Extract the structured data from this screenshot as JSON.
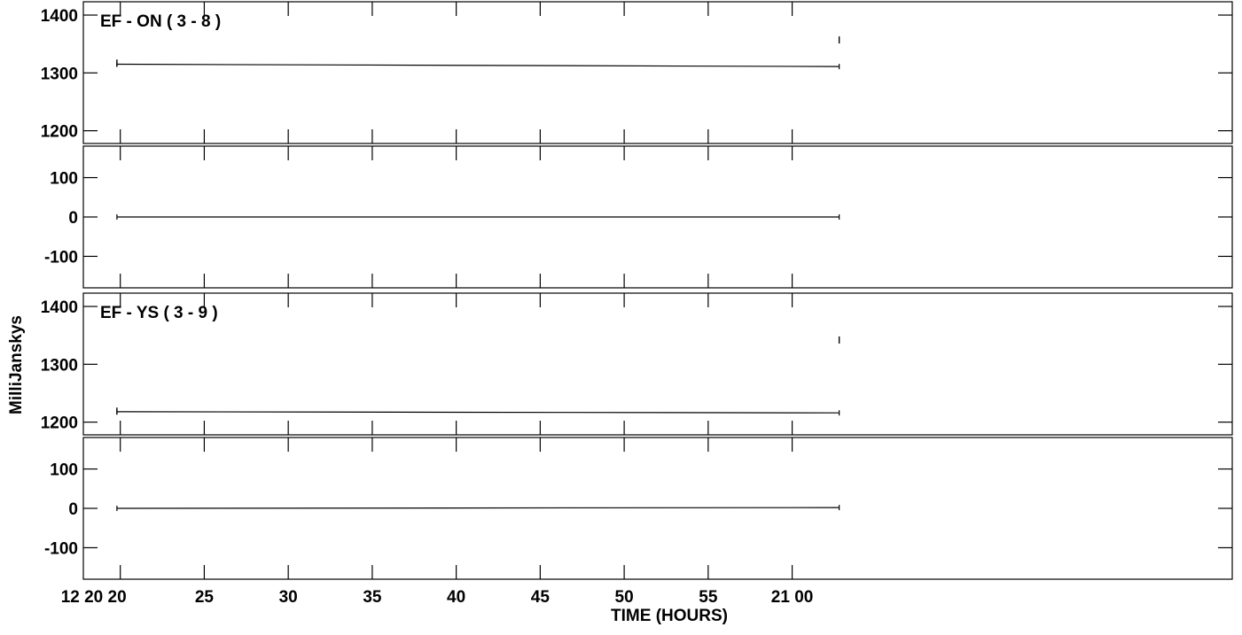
{
  "chart_data": {
    "type": "line",
    "xlabel": "TIME (HOURS)",
    "ylabel": "MilliJanskys",
    "x_axis": {
      "range_minutes": [
        -2.2,
        66.2
      ],
      "ticks": [
        {
          "label": "12 20 20",
          "minutes": 0
        },
        {
          "label": "25",
          "minutes": 5
        },
        {
          "label": "30",
          "minutes": 10
        },
        {
          "label": "35",
          "minutes": 15
        },
        {
          "label": "40",
          "minutes": 20
        },
        {
          "label": "45",
          "minutes": 25
        },
        {
          "label": "50",
          "minutes": 30
        },
        {
          "label": "55",
          "minutes": 35
        },
        {
          "label": "21 00",
          "minutes": 40
        }
      ]
    },
    "baselines": [
      {
        "title": "EF - ON ( 3 - 8 )",
        "amplitude": {
          "ylim": [
            1178,
            1423
          ],
          "yticks": [
            1200,
            1300,
            1400
          ],
          "series": [
            {
              "x_minutes": [
                -0.2,
                42.8
              ],
              "values": [
                1315,
                1311
              ]
            }
          ],
          "marks": [
            {
              "x_minutes": -0.2,
              "value": 1317
            },
            {
              "x_minutes": 42.8,
              "value": 1357
            }
          ]
        },
        "phase": {
          "ylim": [
            -180,
            180
          ],
          "yticks": [
            -100,
            0,
            100
          ],
          "series": [
            {
              "x_minutes": [
                -0.2,
                42.8
              ],
              "values": [
                0,
                0
              ]
            }
          ]
        }
      },
      {
        "title": "EF - YS ( 3 - 9 )",
        "amplitude": {
          "ylim": [
            1178,
            1423
          ],
          "yticks": [
            1200,
            1300,
            1400
          ],
          "series": [
            {
              "x_minutes": [
                -0.2,
                42.8
              ],
              "values": [
                1218,
                1216
              ]
            }
          ],
          "marks": [
            {
              "x_minutes": -0.2,
              "value": 1219
            },
            {
              "x_minutes": 42.8,
              "value": 1342
            }
          ]
        },
        "phase": {
          "ylim": [
            -180,
            180
          ],
          "yticks": [
            -100,
            0,
            100
          ],
          "series": [
            {
              "x_minutes": [
                -0.2,
                42.8
              ],
              "values": [
                0,
                2
              ]
            }
          ]
        }
      }
    ]
  }
}
